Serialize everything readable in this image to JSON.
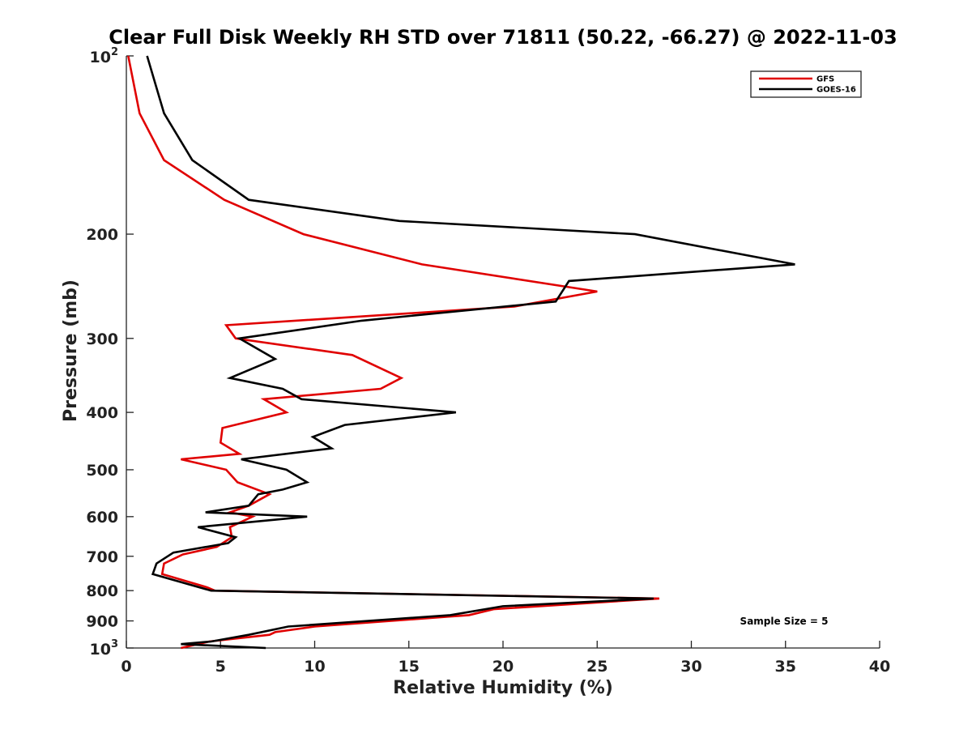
{
  "chart_data": {
    "type": "line",
    "title": "Clear Full Disk Weekly RH STD over 71811 (50.22, -66.27) @ 2022-11-03",
    "xlabel": "Relative Humidity (%)",
    "ylabel": "Pressure (mb)",
    "xlim": [
      0,
      40
    ],
    "ylim": [
      100,
      1000
    ],
    "yscale": "log",
    "y_reversed": true,
    "grid": false,
    "legend_position": "top-right",
    "x_ticks": [
      "0",
      "5",
      "10",
      "15",
      "20",
      "25",
      "30",
      "35",
      "40"
    ],
    "y_ticks": [
      {
        "value": 100,
        "base": "10",
        "exp": "2"
      },
      {
        "value": 200,
        "label": "200"
      },
      {
        "value": 300,
        "label": "300"
      },
      {
        "value": 400,
        "label": "400"
      },
      {
        "value": 500,
        "label": "500"
      },
      {
        "value": 600,
        "label": "600"
      },
      {
        "value": 700,
        "label": "700"
      },
      {
        "value": 800,
        "label": "800"
      },
      {
        "value": 900,
        "label": "900"
      },
      {
        "value": 1000,
        "base": "10",
        "exp": "3"
      }
    ],
    "annotation": "Sample Size = 5",
    "series": [
      {
        "name": "GFS",
        "color": "#e00000",
        "points": [
          [
            0.1,
            100
          ],
          [
            0.7,
            125
          ],
          [
            2.0,
            150
          ],
          [
            5.2,
            175
          ],
          [
            9.4,
            200
          ],
          [
            15.7,
            225
          ],
          [
            25.0,
            250
          ],
          [
            20.6,
            265
          ],
          [
            5.3,
            285
          ],
          [
            5.8,
            300
          ],
          [
            12.0,
            320
          ],
          [
            14.6,
            350
          ],
          [
            13.5,
            365
          ],
          [
            7.3,
            380
          ],
          [
            8.5,
            400
          ],
          [
            5.1,
            425
          ],
          [
            5.0,
            450
          ],
          [
            6.0,
            470
          ],
          [
            2.9,
            480
          ],
          [
            5.3,
            500
          ],
          [
            5.9,
            525
          ],
          [
            7.6,
            550
          ],
          [
            6.5,
            575
          ],
          [
            5.5,
            590
          ],
          [
            6.7,
            600
          ],
          [
            5.5,
            625
          ],
          [
            5.6,
            650
          ],
          [
            4.8,
            675
          ],
          [
            3.0,
            695
          ],
          [
            2.0,
            720
          ],
          [
            1.9,
            750
          ],
          [
            4.3,
            790
          ],
          [
            4.7,
            800
          ],
          [
            28.3,
            825
          ],
          [
            19.5,
            860
          ],
          [
            18.2,
            880
          ],
          [
            10.0,
            920
          ],
          [
            7.9,
            940
          ],
          [
            7.6,
            950
          ],
          [
            4.4,
            975
          ],
          [
            2.9,
            1000
          ]
        ]
      },
      {
        "name": "GOES-16",
        "color": "#000000",
        "points": [
          [
            1.1,
            100
          ],
          [
            2.0,
            125
          ],
          [
            3.5,
            150
          ],
          [
            6.5,
            175
          ],
          [
            14.5,
            190
          ],
          [
            27.0,
            200
          ],
          [
            35.5,
            225
          ],
          [
            23.5,
            240
          ],
          [
            22.8,
            260
          ],
          [
            12.5,
            280
          ],
          [
            6.0,
            300
          ],
          [
            7.9,
            325
          ],
          [
            5.5,
            350
          ],
          [
            8.3,
            365
          ],
          [
            9.3,
            380
          ],
          [
            17.5,
            400
          ],
          [
            11.6,
            420
          ],
          [
            9.9,
            440
          ],
          [
            10.9,
            460
          ],
          [
            6.1,
            480
          ],
          [
            8.5,
            500
          ],
          [
            9.6,
            525
          ],
          [
            8.3,
            540
          ],
          [
            7.0,
            550
          ],
          [
            6.5,
            575
          ],
          [
            4.2,
            590
          ],
          [
            9.6,
            600
          ],
          [
            3.8,
            625
          ],
          [
            5.8,
            650
          ],
          [
            5.4,
            665
          ],
          [
            2.5,
            690
          ],
          [
            1.6,
            720
          ],
          [
            1.4,
            750
          ],
          [
            4.5,
            800
          ],
          [
            28.0,
            825
          ],
          [
            20.0,
            850
          ],
          [
            17.2,
            880
          ],
          [
            8.6,
            920
          ],
          [
            6.5,
            950
          ],
          [
            4.5,
            975
          ],
          [
            2.9,
            985
          ],
          [
            7.4,
            1000
          ]
        ]
      }
    ]
  }
}
